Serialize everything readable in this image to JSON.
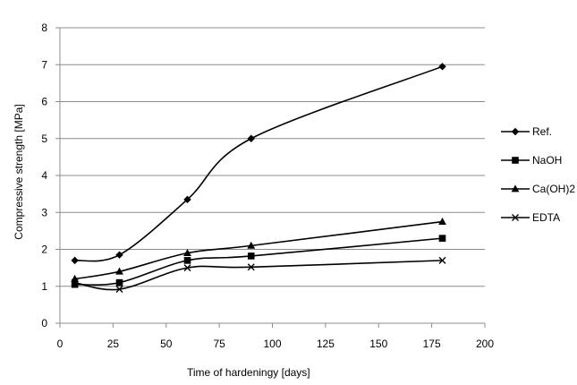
{
  "chart_data": {
    "type": "line",
    "title": "",
    "xlabel": "Time of hardeningy [days]",
    "ylabel": "Compressive strength [MPa]",
    "xlim": [
      0,
      200
    ],
    "ylim": [
      0,
      8
    ],
    "xticks": [
      "0",
      "25",
      "50",
      "75",
      "100",
      "125",
      "150",
      "175",
      "200"
    ],
    "yticks": [
      "0",
      "1",
      "2",
      "3",
      "4",
      "5",
      "6",
      "7",
      "8"
    ],
    "grid": "horizontal",
    "legend_position": "right",
    "series": [
      {
        "name": "Ref.",
        "marker": "diamond",
        "color": "#000000",
        "x": [
          7,
          28,
          60,
          90,
          180
        ],
        "y": [
          1.7,
          1.85,
          3.35,
          5.0,
          6.95
        ]
      },
      {
        "name": "NaOH",
        "marker": "square",
        "color": "#000000",
        "x": [
          7,
          28,
          60,
          90,
          180
        ],
        "y": [
          1.05,
          1.1,
          1.7,
          1.82,
          2.3
        ]
      },
      {
        "name": "Ca(OH)2",
        "marker": "triangle",
        "color": "#000000",
        "x": [
          7,
          28,
          60,
          90,
          180
        ],
        "y": [
          1.2,
          1.4,
          1.9,
          2.1,
          2.75
        ]
      },
      {
        "name": "EDTA",
        "marker": "x",
        "color": "#000000",
        "x": [
          7,
          28,
          60,
          90,
          180
        ],
        "y": [
          1.1,
          0.92,
          1.5,
          1.52,
          1.7
        ]
      }
    ]
  }
}
